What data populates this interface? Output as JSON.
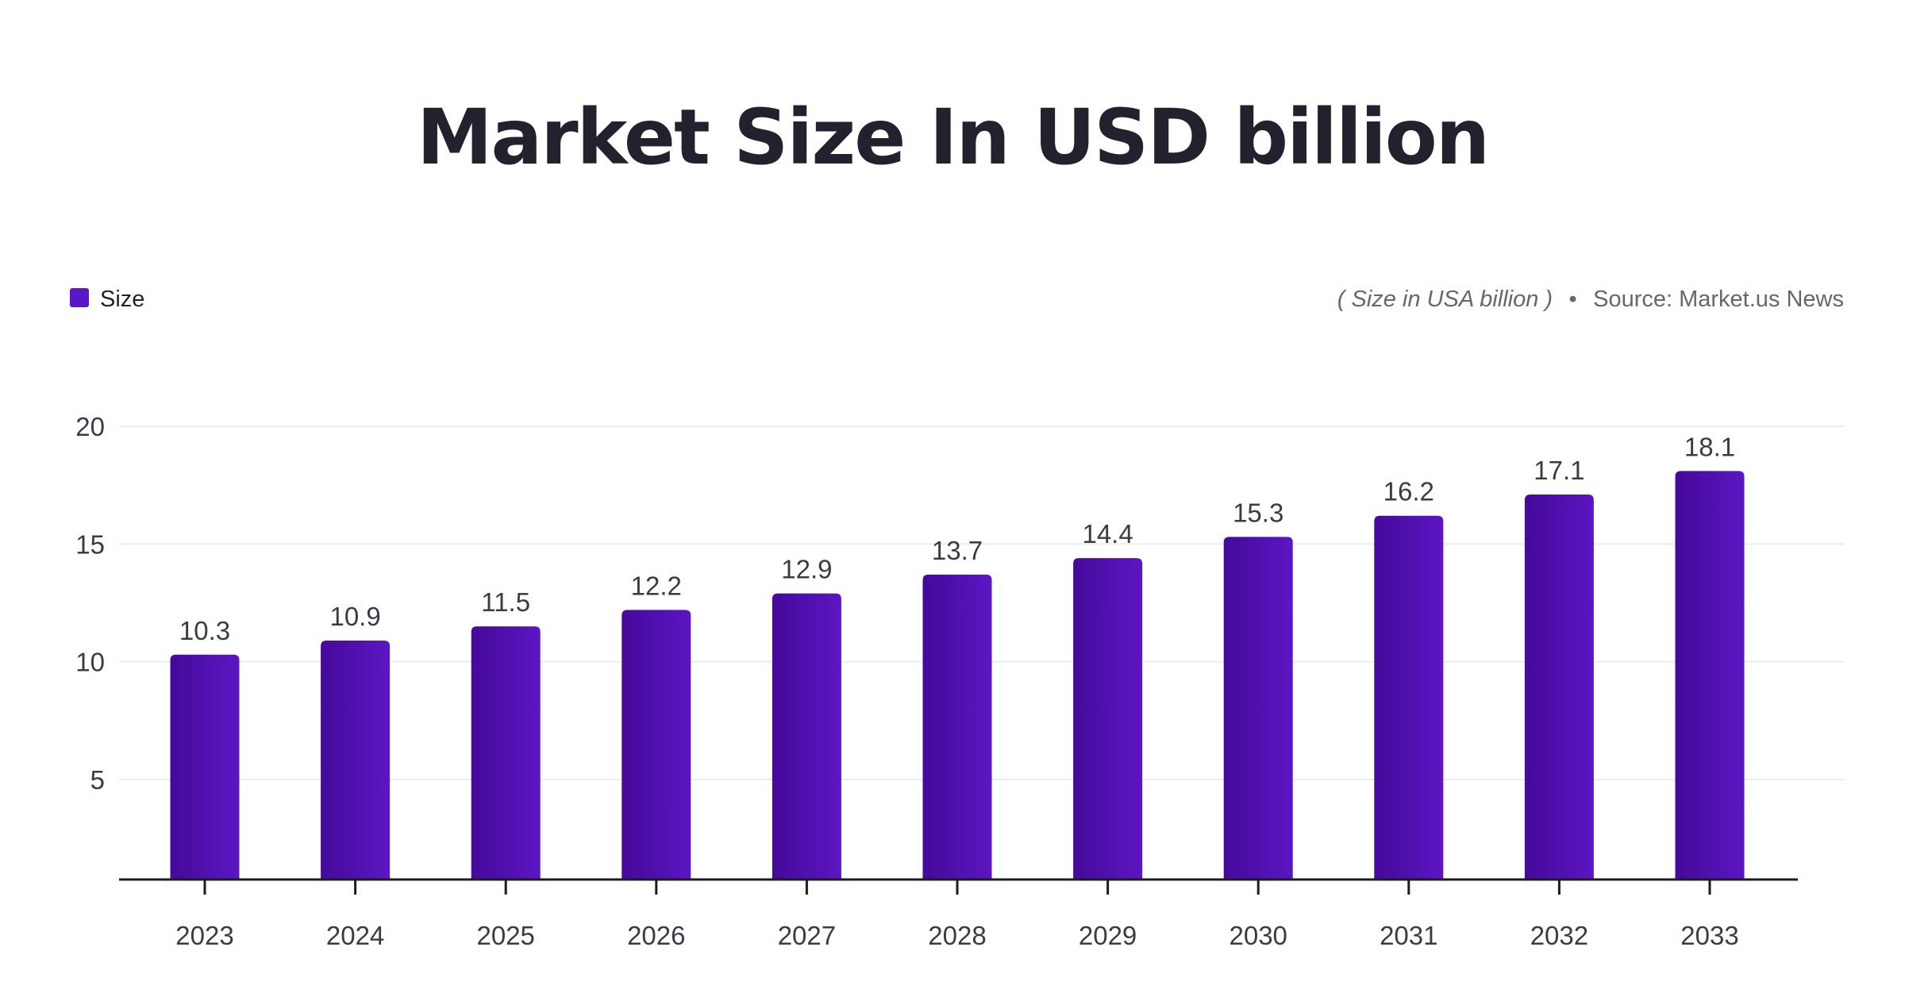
{
  "chart_data": {
    "type": "bar",
    "title": "Market Size In USD billion",
    "legend": {
      "entries": [
        {
          "name": "Size",
          "color": "#5a17c7"
        }
      ],
      "placement": "top-left"
    },
    "unit_note": "( Size in USA billion )",
    "separator": "•",
    "source": "Source: Market.us News",
    "categories": [
      "2023",
      "2024",
      "2025",
      "2026",
      "2027",
      "2028",
      "2029",
      "2030",
      "2031",
      "2032",
      "2033"
    ],
    "series": [
      {
        "name": "Size",
        "values": [
          10.3,
          10.9,
          11.5,
          12.2,
          12.9,
          13.7,
          14.4,
          15.3,
          16.2,
          17.1,
          18.1
        ],
        "color": "#5a17c7"
      }
    ],
    "value_labels": [
      "10.3",
      "10.9",
      "11.5",
      "12.2",
      "12.9",
      "13.7",
      "14.4",
      "15.3",
      "16.2",
      "17.1",
      "18.1"
    ],
    "y_ticks": [
      5,
      10,
      15,
      20
    ],
    "y_tick_labels": [
      "5",
      "10",
      "15",
      "20"
    ],
    "xlabel": "",
    "ylabel": "",
    "grid": true,
    "colors": {
      "bar_start": "#45099a",
      "bar_end": "#5c16c3",
      "grid": "#ececec",
      "axis": "#1b1b22",
      "text": "#3b3b45",
      "title": "#22222e"
    }
  }
}
